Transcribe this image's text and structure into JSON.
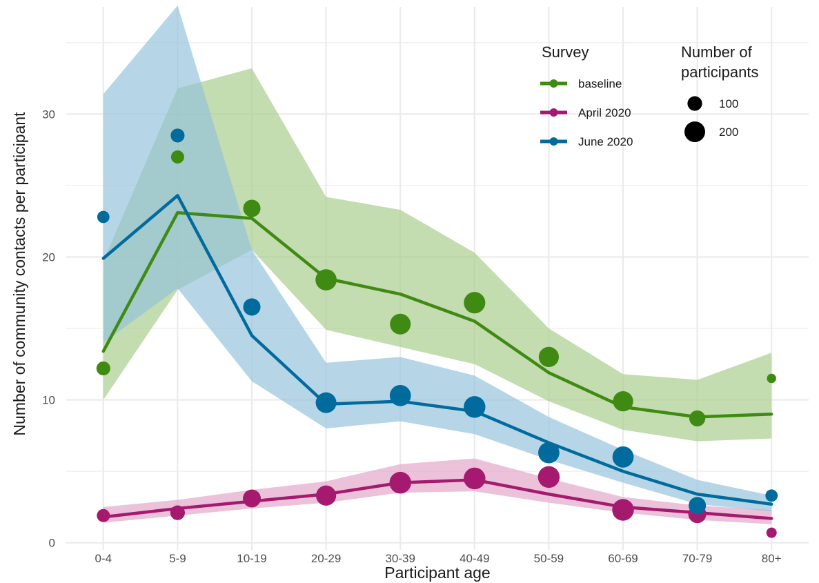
{
  "chart_data": {
    "type": "line",
    "xlabel": "Participant age",
    "ylabel": "Number of community contacts per participant",
    "categories": [
      "0-4",
      "5-9",
      "10-19",
      "20-29",
      "30-39",
      "40-49",
      "50-59",
      "60-69",
      "70-79",
      "80+"
    ],
    "ylim": [
      -0.5,
      37.5
    ],
    "yticks": [
      0,
      10,
      20,
      30
    ],
    "grid": true,
    "legend_position": "top-right",
    "legend_title": "Survey",
    "size_legend": {
      "title_lines": [
        "Number of",
        "participants"
      ],
      "entries": [
        {
          "label": "100",
          "value": 100
        },
        {
          "label": "200",
          "value": 200
        }
      ]
    },
    "series": [
      {
        "name": "baseline",
        "color": "#3f8a12",
        "band_color": "#a6cc8a",
        "fit": [
          13.4,
          23.1,
          22.7,
          18.5,
          17.4,
          15.5,
          11.9,
          9.5,
          8.8,
          9.0
        ],
        "lower": [
          10.0,
          17.7,
          20.5,
          14.9,
          13.7,
          12.5,
          9.9,
          7.9,
          7.1,
          7.3
        ],
        "upper": [
          19.7,
          31.8,
          33.2,
          24.2,
          23.3,
          20.3,
          15.0,
          11.8,
          11.4,
          13.3
        ],
        "observed": [
          12.2,
          27.0,
          23.4,
          18.4,
          15.3,
          16.8,
          13.0,
          9.9,
          8.7,
          11.5
        ],
        "participants": [
          90,
          80,
          140,
          210,
          200,
          215,
          190,
          190,
          120,
          40
        ]
      },
      {
        "name": "April 2020",
        "color": "#a51a6f",
        "band_color": "#e2a5c8",
        "fit": [
          1.8,
          2.4,
          2.9,
          3.4,
          4.2,
          4.4,
          3.4,
          2.5,
          2.1,
          1.7
        ],
        "lower": [
          1.4,
          1.9,
          2.4,
          2.8,
          3.5,
          3.6,
          2.8,
          2.1,
          1.6,
          1.3
        ],
        "upper": [
          2.5,
          3.0,
          3.7,
          4.3,
          5.5,
          5.9,
          4.5,
          3.2,
          2.6,
          2.3
        ],
        "observed": [
          1.9,
          2.1,
          3.1,
          3.3,
          4.2,
          4.5,
          4.6,
          2.3,
          2.0,
          0.7
        ],
        "participants": [
          80,
          100,
          150,
          190,
          220,
          220,
          220,
          220,
          150,
          50
        ]
      },
      {
        "name": "June 2020",
        "color": "#006b9c",
        "band_color": "#94c2dc",
        "fit": [
          19.9,
          24.3,
          14.5,
          9.7,
          9.9,
          9.2,
          7.0,
          5.0,
          3.4,
          2.7
        ],
        "lower": [
          14.0,
          17.8,
          11.3,
          8.0,
          8.5,
          7.6,
          5.8,
          4.2,
          2.7,
          2.2
        ],
        "upper": [
          31.4,
          37.6,
          20.5,
          12.6,
          13.0,
          11.7,
          8.8,
          6.5,
          4.4,
          3.3
        ],
        "observed": [
          22.8,
          28.5,
          16.5,
          9.8,
          10.3,
          9.5,
          6.3,
          6.0,
          2.6,
          3.3
        ],
        "participants": [
          70,
          90,
          140,
          200,
          210,
          220,
          210,
          210,
          140,
          70
        ]
      }
    ]
  }
}
